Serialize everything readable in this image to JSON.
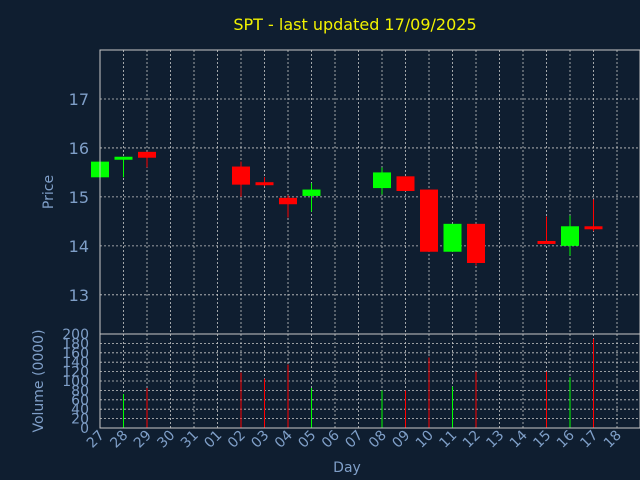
{
  "chart_data": {
    "type": "candlestick",
    "title": "SPT - last updated 17/09/2025",
    "xlabel": "Day",
    "price_ylabel": "Price",
    "volume_ylabel": "Volume (0000)",
    "x_ticks": [
      "27",
      "28",
      "29",
      "30",
      "31",
      "01",
      "02",
      "03",
      "04",
      "05",
      "06",
      "07",
      "08",
      "09",
      "10",
      "11",
      "12",
      "13",
      "14",
      "15",
      "16",
      "17",
      "18"
    ],
    "price_yticks": [
      13,
      14,
      15,
      16,
      17
    ],
    "price_ylim": [
      12.2,
      18.0
    ],
    "volume_yticks": [
      0,
      20,
      40,
      60,
      80,
      100,
      120,
      140,
      160,
      180,
      200
    ],
    "volume_ylim": [
      0,
      200
    ],
    "colors": {
      "up": "#00ff00",
      "down": "#ff0000",
      "background": "#0f1e30",
      "title": "#f2f200",
      "text": "#7f9fc8",
      "grid": "#c8c8c8"
    },
    "candles": [
      {
        "day": "27",
        "open": 15.4,
        "high": 15.72,
        "low": 15.4,
        "close": 15.72,
        "volume": 0
      },
      {
        "day": "28",
        "open": 15.76,
        "high": 15.82,
        "low": 15.4,
        "close": 15.82,
        "volume": 72
      },
      {
        "day": "29",
        "open": 15.92,
        "high": 15.92,
        "low": 15.6,
        "close": 15.8,
        "volume": 85
      },
      {
        "day": "02",
        "open": 15.62,
        "high": 15.72,
        "low": 15.0,
        "close": 15.25,
        "volume": 118
      },
      {
        "day": "03",
        "open": 15.3,
        "high": 15.4,
        "low": 15.22,
        "close": 15.25,
        "volume": 105
      },
      {
        "day": "04",
        "open": 14.98,
        "high": 15.03,
        "low": 14.58,
        "close": 14.85,
        "volume": 135
      },
      {
        "day": "05",
        "open": 15.02,
        "high": 15.28,
        "low": 14.7,
        "close": 15.15,
        "volume": 85
      },
      {
        "day": "08",
        "open": 15.18,
        "high": 15.6,
        "low": 15.05,
        "close": 15.5,
        "volume": 80
      },
      {
        "day": "09",
        "open": 15.42,
        "high": 15.42,
        "low": 15.12,
        "close": 15.12,
        "volume": 80
      },
      {
        "day": "10",
        "open": 15.15,
        "high": 15.15,
        "low": 13.88,
        "close": 13.88,
        "volume": 150
      },
      {
        "day": "11",
        "open": 13.88,
        "high": 14.45,
        "low": 13.88,
        "close": 14.45,
        "volume": 88
      },
      {
        "day": "12",
        "open": 14.45,
        "high": 14.45,
        "low": 13.6,
        "close": 13.65,
        "volume": 120
      },
      {
        "day": "15",
        "open": 14.1,
        "high": 14.6,
        "low": 14.05,
        "close": 14.05,
        "volume": 120
      },
      {
        "day": "16",
        "open": 14.0,
        "high": 14.62,
        "low": 13.8,
        "close": 14.4,
        "volume": 108
      },
      {
        "day": "17",
        "open": 14.4,
        "high": 14.95,
        "low": 14.3,
        "close": 14.38,
        "volume": 190
      }
    ]
  }
}
